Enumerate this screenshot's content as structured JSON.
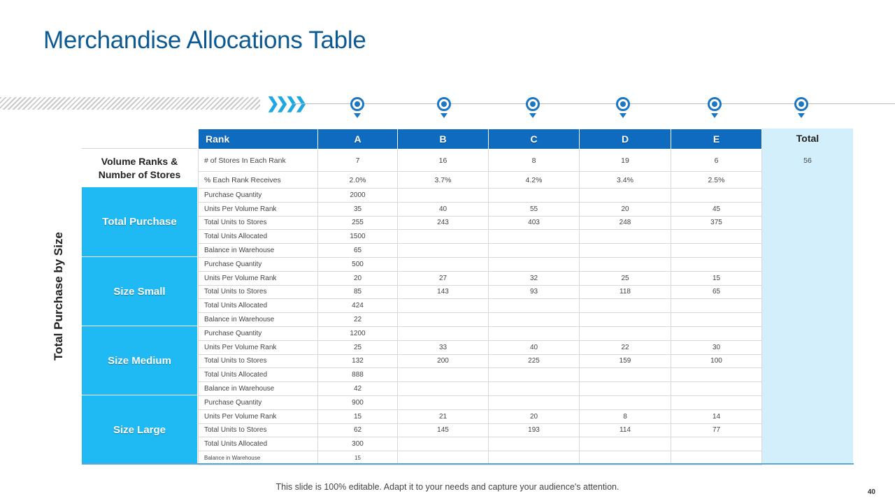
{
  "title": "Merchandise Allocations Table",
  "chevrons": "❯❯❯❯",
  "axis_label": "Total Purchase by Size",
  "header": {
    "rank_label": "Rank",
    "columns": [
      "A",
      "B",
      "C",
      "D",
      "E"
    ],
    "total_label": "Total"
  },
  "volume": {
    "label_line1": "Volume Ranks &",
    "label_line2": "Number of Stores",
    "stores_label": "# of Stores In Each Rank",
    "stores": [
      "7",
      "16",
      "8",
      "19",
      "6"
    ],
    "stores_total": "56",
    "percent_label": "% Each Rank Receives",
    "percent": [
      "2.0%",
      "3.7%",
      "4.2%",
      "3.4%",
      "2.5%"
    ]
  },
  "groups": [
    {
      "name": "Total Purchase",
      "rows": [
        {
          "metric": "Purchase Quantity",
          "values": [
            "2000",
            "",
            "",
            "",
            ""
          ]
        },
        {
          "metric": "Units Per Volume Rank",
          "values": [
            "35",
            "40",
            "55",
            "20",
            "45"
          ]
        },
        {
          "metric": "Total Units to Stores",
          "values": [
            "255",
            "243",
            "403",
            "248",
            "375"
          ]
        },
        {
          "metric": "Total Units Allocated",
          "values": [
            "1500",
            "",
            "",
            "",
            ""
          ]
        },
        {
          "metric": "Balance in Warehouse",
          "values": [
            "65",
            "",
            "",
            "",
            ""
          ]
        }
      ]
    },
    {
      "name": "Size Small",
      "rows": [
        {
          "metric": "Purchase Quantity",
          "values": [
            "500",
            "",
            "",
            "",
            ""
          ]
        },
        {
          "metric": "Units Per Volume Rank",
          "values": [
            "20",
            "27",
            "32",
            "25",
            "15"
          ]
        },
        {
          "metric": "Total Units to Stores",
          "values": [
            "85",
            "143",
            "93",
            "118",
            "65"
          ]
        },
        {
          "metric": "Total Units Allocated",
          "values": [
            "424",
            "",
            "",
            "",
            ""
          ]
        },
        {
          "metric": "Balance in Warehouse",
          "values": [
            "22",
            "",
            "",
            "",
            ""
          ]
        }
      ]
    },
    {
      "name": "Size Medium",
      "rows": [
        {
          "metric": "Purchase Quantity",
          "values": [
            "1200",
            "",
            "",
            "",
            ""
          ]
        },
        {
          "metric": "Units Per Volume Rank",
          "values": [
            "25",
            "33",
            "40",
            "22",
            "30"
          ]
        },
        {
          "metric": "Total Units to Stores",
          "values": [
            "132",
            "200",
            "225",
            "159",
            "100"
          ]
        },
        {
          "metric": "Total Units Allocated",
          "values": [
            "888",
            "",
            "",
            "",
            ""
          ]
        },
        {
          "metric": "Balance in Warehouse",
          "values": [
            "42",
            "",
            "",
            "",
            ""
          ]
        }
      ]
    },
    {
      "name": "Size Large",
      "rows": [
        {
          "metric": "Purchase Quantity",
          "values": [
            "900",
            "",
            "",
            "",
            ""
          ]
        },
        {
          "metric": "Units Per Volume Rank",
          "values": [
            "15",
            "21",
            "20",
            "8",
            "14"
          ]
        },
        {
          "metric": "Total Units to Stores",
          "values": [
            "62",
            "145",
            "193",
            "114",
            "77"
          ]
        },
        {
          "metric": "Total Units Allocated",
          "values": [
            "300",
            "",
            "",
            "",
            ""
          ]
        },
        {
          "metric": "Balance in Warehouse",
          "values": [
            "15",
            "",
            "",
            "",
            ""
          ]
        }
      ]
    }
  ],
  "footer": "This slide is 100% editable. Adapt it to your needs and capture your audience's attention.",
  "page_number": "40",
  "colors": {
    "title": "#0d5a93",
    "header_blue": "#0f6bbf",
    "group_cyan": "#1fbaf3",
    "total_bg": "#d3effb",
    "marker_blue": "#1d76c2",
    "chevron_blue": "#1ea7e1"
  }
}
